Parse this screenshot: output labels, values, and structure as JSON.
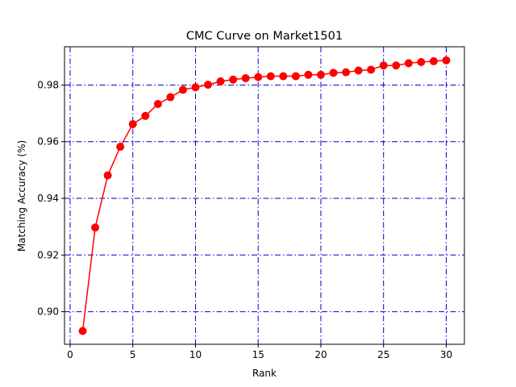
{
  "chart_data": {
    "type": "line",
    "title": "CMC Curve on Market1501",
    "xlabel": "Rank",
    "ylabel": "Matching Accuracy (%)",
    "xlim": [
      -0.45,
      31.45
    ],
    "ylim": [
      0.8885,
      0.9935
    ],
    "xticks": [
      0,
      5,
      10,
      15,
      20,
      25,
      30
    ],
    "yticks": [
      0.9,
      0.92,
      0.94,
      0.96,
      0.98
    ],
    "grid": true,
    "grid_style": "dash-dot",
    "grid_color": "#0000cc",
    "series": [
      {
        "color": "#ff0000",
        "marker": "circle",
        "x": [
          1,
          2,
          3,
          4,
          5,
          6,
          7,
          8,
          9,
          10,
          11,
          12,
          13,
          14,
          15,
          16,
          17,
          18,
          19,
          20,
          21,
          22,
          23,
          24,
          25,
          26,
          27,
          28,
          29,
          30
        ],
        "y": [
          0.8932,
          0.9297,
          0.9481,
          0.9582,
          0.9662,
          0.9691,
          0.9733,
          0.9757,
          0.9783,
          0.9792,
          0.9801,
          0.9813,
          0.9819,
          0.9824,
          0.9828,
          0.9831,
          0.9831,
          0.9831,
          0.9836,
          0.9836,
          0.9843,
          0.9845,
          0.9851,
          0.9854,
          0.9869,
          0.9869,
          0.9877,
          0.9881,
          0.9884,
          0.9887
        ]
      }
    ]
  }
}
